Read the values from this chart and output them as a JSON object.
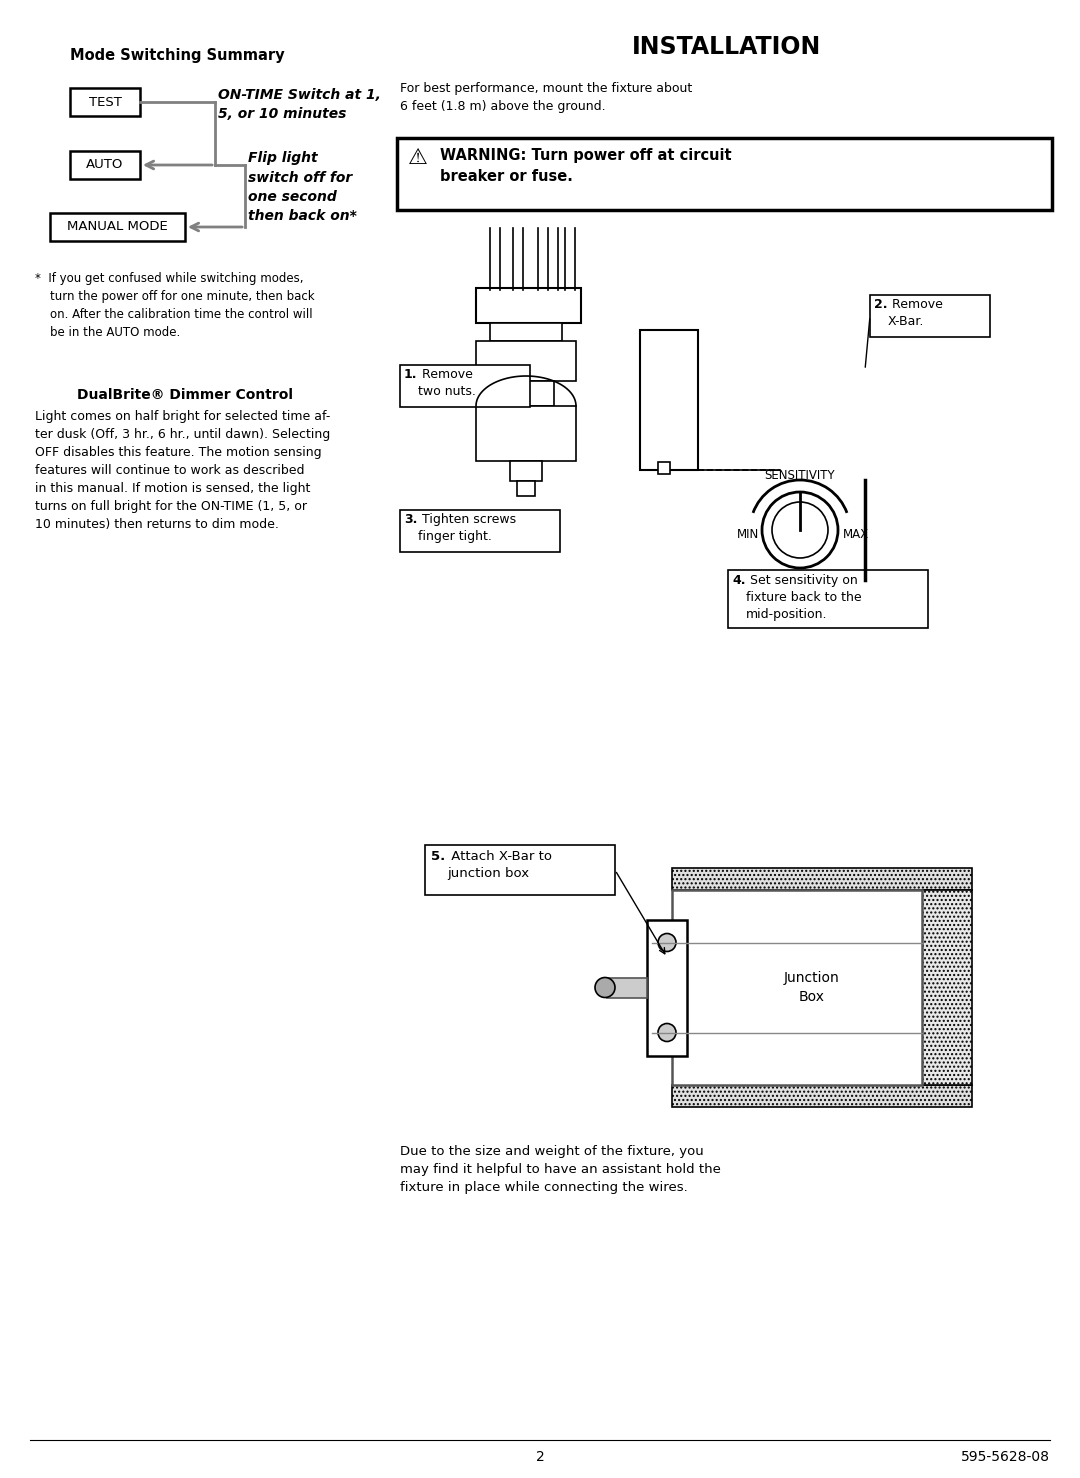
{
  "bg_color": "#ffffff",
  "page_width": 10.8,
  "page_height": 14.78,
  "left_title": "Mode Switching Summary",
  "right_title": "INSTALLATION",
  "install_para1": "For best performance, mount the fixture about\n6 feet (1.8 m) above the ground.",
  "footnote_star": "*  If you get confused while switching modes,\n    turn the power off for one minute, then back\n    on. After the calibration time the control will\n    be in the AUTO mode.",
  "dualbrite_title": "DualBrite® Dimmer Control",
  "dualbrite_body": "Light comes on half bright for selected time af-\nter dusk (Off, 3 hr., 6 hr., until dawn). Selecting\nOFF disables this feature. The motion sensing\nfeatures will continue to work as described\nin this manual. If motion is sensed, the light\nturns on full bright for the ON-TIME (1, 5, or\n10 minutes) then returns to dim mode.",
  "step1_label": "1. Remove\n   two nuts.",
  "step2_label": "2. Remove\n   X-Bar.",
  "step3_label": "3. Tighten screws\n   finger tight.",
  "sensitivity_label": "SENSITIVITY",
  "min_label": "MIN",
  "max_label": "MAX",
  "step4_label": "4. Set sensitivity on\n   fixture back to the\n   mid-position.",
  "step5_label_bold": "5.",
  "step5_label_normal": " Attach X-Bar to\n   junction box",
  "junction_box_label": "Junction\nBox",
  "page_num": "2",
  "doc_num": "595-5628-08"
}
